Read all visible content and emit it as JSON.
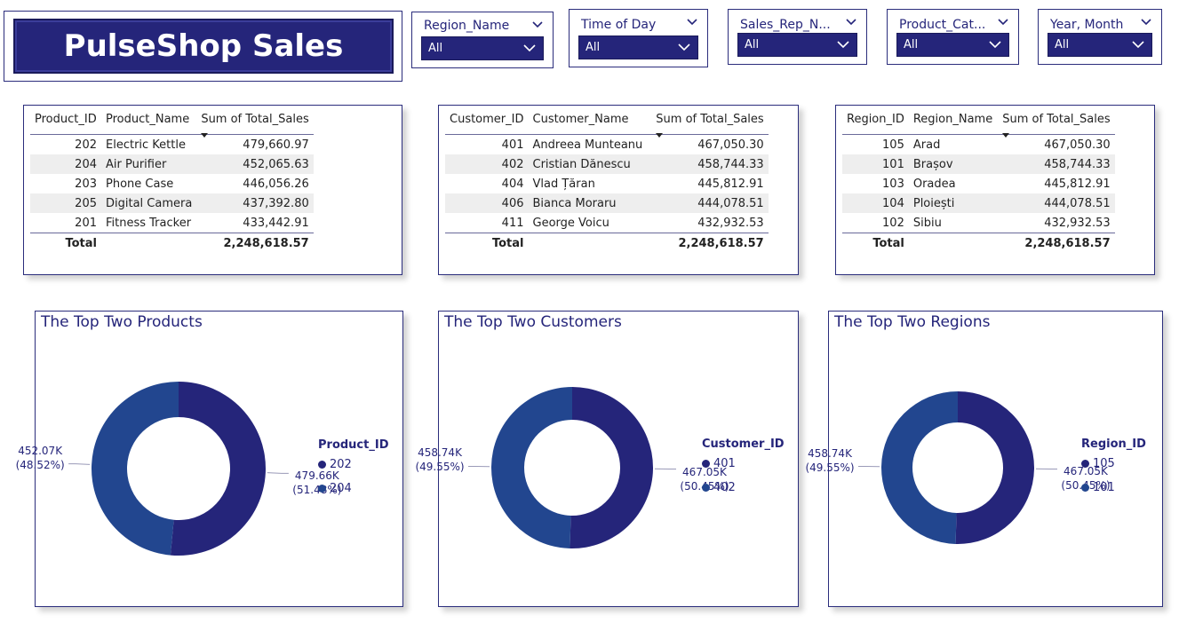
{
  "title": "PulseShop Sales",
  "colors": {
    "navy": "#25257a",
    "blue": "#22468f"
  },
  "slicers": [
    {
      "label": "Region_Name",
      "value": "All"
    },
    {
      "label": "Time of Day",
      "value": "All"
    },
    {
      "label": "Sales_Rep_N...",
      "value": "All"
    },
    {
      "label": "Product_Cat...",
      "value": "All"
    },
    {
      "label": "Year, Month",
      "value": "All"
    }
  ],
  "tables": {
    "products": {
      "headers": [
        "Product_ID",
        "Product_Name",
        "Sum of Total_Sales"
      ],
      "rows": [
        [
          "202",
          "Electric Kettle",
          "479,660.97"
        ],
        [
          "204",
          "Air Purifier",
          "452,065.63"
        ],
        [
          "203",
          "Phone Case",
          "446,056.26"
        ],
        [
          "205",
          "Digital Camera",
          "437,392.80"
        ],
        [
          "201",
          "Fitness Tracker",
          "433,442.91"
        ]
      ],
      "total_label": "Total",
      "total_value": "2,248,618.57"
    },
    "customers": {
      "headers": [
        "Customer_ID",
        "Customer_Name",
        "Sum of Total_Sales"
      ],
      "rows": [
        [
          "401",
          "Andreea Munteanu",
          "467,050.30"
        ],
        [
          "402",
          "Cristian Dănescu",
          "458,744.33"
        ],
        [
          "404",
          "Vlad Țăran",
          "445,812.91"
        ],
        [
          "406",
          "Bianca Moraru",
          "444,078.51"
        ],
        [
          "411",
          "George Voicu",
          "432,932.53"
        ]
      ],
      "total_label": "Total",
      "total_value": "2,248,618.57"
    },
    "regions": {
      "headers": [
        "Region_ID",
        "Region_Name",
        "Sum of Total_Sales"
      ],
      "rows": [
        [
          "105",
          "Arad",
          "467,050.30"
        ],
        [
          "101",
          "Brașov",
          "458,744.33"
        ],
        [
          "103",
          "Oradea",
          "445,812.91"
        ],
        [
          "104",
          "Ploiești",
          "444,078.51"
        ],
        [
          "102",
          "Sibiu",
          "432,932.53"
        ]
      ],
      "total_label": "Total",
      "total_value": "2,248,618.57"
    }
  },
  "chart_data": [
    {
      "type": "pie",
      "title": "The Top Two Products",
      "legend_title": "Product_ID",
      "categories": [
        "202",
        "204"
      ],
      "values": [
        479660.97,
        452065.63
      ],
      "value_labels": [
        "479.66K",
        "452.07K"
      ],
      "percent_labels": [
        "(51.48%)",
        "(48.52%)"
      ],
      "colors": [
        "#25257a",
        "#22468f"
      ],
      "legend": "right"
    },
    {
      "type": "pie",
      "title": "The Top Two Customers",
      "legend_title": "Customer_ID",
      "categories": [
        "401",
        "402"
      ],
      "values": [
        467050.3,
        458744.33
      ],
      "value_labels": [
        "467.05K",
        "458.74K"
      ],
      "percent_labels": [
        "(50.45%)",
        "(49.55%)"
      ],
      "colors": [
        "#25257a",
        "#22468f"
      ],
      "legend": "right"
    },
    {
      "type": "pie",
      "title": "The Top Two Regions",
      "legend_title": "Region_ID",
      "categories": [
        "105",
        "101"
      ],
      "values": [
        467050.3,
        458744.33
      ],
      "value_labels": [
        "467.05K",
        "458.74K"
      ],
      "percent_labels": [
        "(50.45%)",
        "(49.55%)"
      ],
      "colors": [
        "#25257a",
        "#22468f"
      ],
      "legend": "right"
    }
  ]
}
